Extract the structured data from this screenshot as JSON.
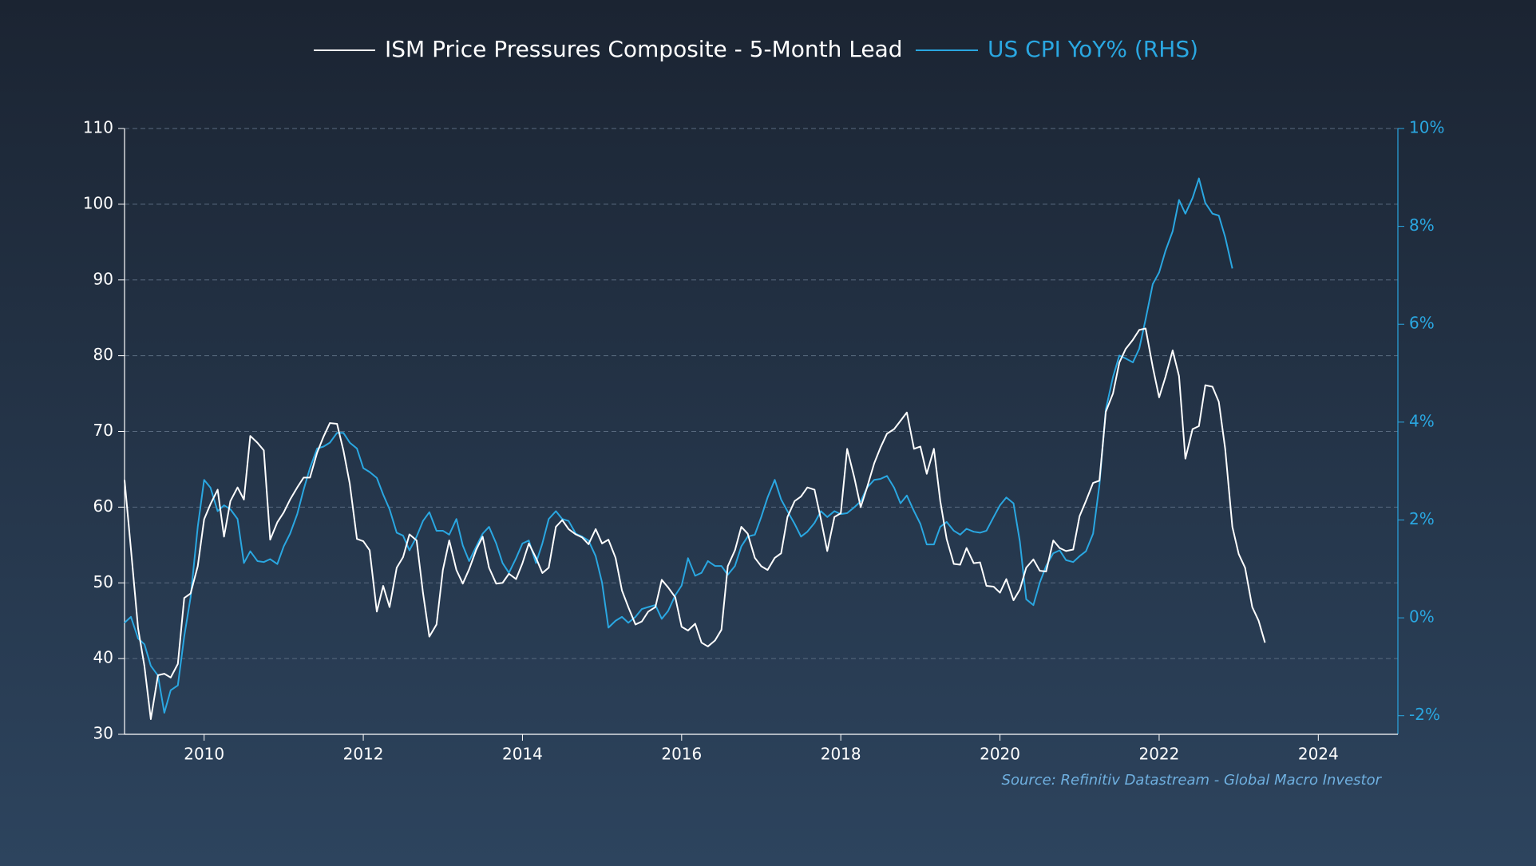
{
  "chart_data": {
    "type": "line",
    "source": "Source: Refinitiv Datastream - Global Macro Investor",
    "x": [
      2009,
      2009.08,
      2009.17,
      2009.25,
      2009.33,
      2009.42,
      2009.5,
      2009.58,
      2009.67,
      2009.75,
      2009.83,
      2009.92,
      2010,
      2010.08,
      2010.17,
      2010.25,
      2010.33,
      2010.42,
      2010.5,
      2010.58,
      2010.67,
      2010.75,
      2010.83,
      2010.92,
      2011,
      2011.08,
      2011.17,
      2011.25,
      2011.33,
      2011.42,
      2011.5,
      2011.58,
      2011.67,
      2011.75,
      2011.83,
      2011.92,
      2012,
      2012.08,
      2012.17,
      2012.25,
      2012.33,
      2012.42,
      2012.5,
      2012.58,
      2012.67,
      2012.75,
      2012.83,
      2012.92,
      2013,
      2013.08,
      2013.17,
      2013.25,
      2013.33,
      2013.42,
      2013.5,
      2013.58,
      2013.67,
      2013.75,
      2013.83,
      2013.92,
      2014,
      2014.08,
      2014.17,
      2014.25,
      2014.33,
      2014.42,
      2014.5,
      2014.58,
      2014.67,
      2014.75,
      2014.83,
      2014.92,
      2015,
      2015.08,
      2015.17,
      2015.25,
      2015.33,
      2015.42,
      2015.5,
      2015.58,
      2015.67,
      2015.75,
      2015.83,
      2015.92,
      2016,
      2016.08,
      2016.17,
      2016.25,
      2016.33,
      2016.42,
      2016.5,
      2016.58,
      2016.67,
      2016.75,
      2016.83,
      2016.92,
      2017,
      2017.08,
      2017.17,
      2017.25,
      2017.33,
      2017.42,
      2017.5,
      2017.58,
      2017.67,
      2017.75,
      2017.83,
      2017.92,
      2018,
      2018.08,
      2018.17,
      2018.25,
      2018.33,
      2018.42,
      2018.5,
      2018.58,
      2018.67,
      2018.75,
      2018.83,
      2018.92,
      2019,
      2019.08,
      2019.17,
      2019.25,
      2019.33,
      2019.42,
      2019.5,
      2019.58,
      2019.67,
      2019.75,
      2019.83,
      2019.92,
      2020,
      2020.08,
      2020.17,
      2020.25,
      2020.33,
      2020.42,
      2020.5,
      2020.58,
      2020.67,
      2020.75,
      2020.83,
      2020.92,
      2021,
      2021.08,
      2021.17,
      2021.25,
      2021.33,
      2021.42,
      2021.5,
      2021.58,
      2021.67,
      2021.75,
      2021.83,
      2021.92,
      2022,
      2022.08,
      2022.17,
      2022.25,
      2022.33,
      2022.42,
      2022.5,
      2022.58,
      2022.67,
      2022.75,
      2022.83,
      2022.92,
      2023,
      2023.08,
      2023.17,
      2023.25,
      2023.33
    ],
    "series": [
      {
        "name": "ISM Price Pressures Composite - 5-Month Lead",
        "color": "#ffffff",
        "axis": "y",
        "values": [
          63.6,
          54.5,
          44,
          39,
          32,
          37.8,
          38,
          37.5,
          39.3,
          48,
          48.6,
          52.2,
          58.4,
          60.4,
          62.3,
          56.1,
          60.8,
          62.6,
          61,
          69.4,
          68.5,
          67.5,
          55.7,
          58,
          59.3,
          61,
          62.6,
          63.9,
          63.9,
          67.2,
          69.3,
          71.1,
          71,
          67.5,
          63.1,
          55.8,
          55.5,
          54.3,
          46.2,
          49.6,
          46.8,
          52,
          53.4,
          56.4,
          55.6,
          48.7,
          42.9,
          44.5,
          51.7,
          55.6,
          51.7,
          49.9,
          51.8,
          54.4,
          56.1,
          52,
          49.9,
          50,
          51.2,
          50.5,
          52.6,
          55.2,
          53.3,
          51.3,
          52,
          57.4,
          58.3,
          57.1,
          56.4,
          56,
          55.1,
          57.1,
          55.2,
          55.7,
          53.3,
          49,
          46.8,
          44.5,
          44.9,
          46.2,
          46.8,
          50.4,
          49.4,
          48.1,
          44.2,
          43.7,
          44.6,
          42.1,
          41.6,
          42.4,
          43.8,
          52.2,
          54.3,
          57.4,
          56.5,
          53.3,
          52.2,
          51.7,
          53.3,
          53.9,
          58.7,
          60.8,
          61.4,
          62.6,
          62.3,
          58.4,
          54.2,
          58.7,
          59.2,
          67.7,
          63.9,
          60,
          62.6,
          65.8,
          67.9,
          69.7,
          70.3,
          71.4,
          72.5,
          67.7,
          68,
          64.4,
          67.7,
          60.8,
          55.8,
          52.5,
          52.4,
          54.6,
          52.6,
          52.7,
          49.6,
          49.5,
          48.7,
          50.5,
          47.7,
          49.1,
          52,
          53.1,
          51.6,
          51.5,
          55.6,
          54.6,
          54.2,
          54.4,
          58.8,
          60.8,
          63.2,
          63.5,
          72.6,
          75,
          79.1,
          80.9,
          82.1,
          83.4,
          83.6,
          78.5,
          74.5,
          77.2,
          80.7,
          77.3,
          66.4,
          70.3,
          70.7,
          76.1,
          75.9,
          73.9,
          67.7,
          57.4,
          53.8,
          52,
          46.8,
          45,
          42.1
        ]
      },
      {
        "name": "US CPI YoY% (RHS)",
        "color": "#2aa7e1",
        "axis": "y2",
        "values": [
          -0.1,
          0.02,
          -0.42,
          -0.54,
          -0.98,
          -1.18,
          -1.94,
          -1.48,
          -1.38,
          -0.38,
          0.42,
          1.86,
          2.82,
          2.66,
          2.18,
          2.3,
          2.22,
          2.02,
          1.12,
          1.36,
          1.16,
          1.14,
          1.2,
          1.1,
          1.46,
          1.72,
          2.12,
          2.62,
          3.06,
          3.46,
          3.5,
          3.58,
          3.78,
          3.78,
          3.58,
          3.46,
          3.06,
          2.98,
          2.86,
          2.52,
          2.22,
          1.74,
          1.68,
          1.38,
          1.66,
          1.98,
          2.16,
          1.78,
          1.78,
          1.7,
          2.02,
          1.48,
          1.16,
          1.46,
          1.72,
          1.86,
          1.52,
          1.12,
          0.92,
          1.22,
          1.52,
          1.58,
          1.12,
          1.52,
          2.02,
          2.18,
          2.02,
          1.98,
          1.72,
          1.66,
          1.58,
          1.26,
          0.72,
          -0.2,
          -0.06,
          0.02,
          -0.1,
          0.02,
          0.18,
          0.22,
          0.26,
          -0.02,
          0.14,
          0.46,
          0.66,
          1.22,
          0.86,
          0.92,
          1.16,
          1.06,
          1.06,
          0.88,
          1.06,
          1.46,
          1.66,
          1.7,
          2.06,
          2.46,
          2.82,
          2.42,
          2.18,
          1.92,
          1.66,
          1.76,
          1.94,
          2.18,
          2.06,
          2.18,
          2.12,
          2.14,
          2.26,
          2.38,
          2.66,
          2.82,
          2.84,
          2.9,
          2.66,
          2.34,
          2.5,
          2.18,
          1.92,
          1.5,
          1.5,
          1.86,
          1.96,
          1.78,
          1.7,
          1.82,
          1.76,
          1.74,
          1.78,
          2.06,
          2.3,
          2.46,
          2.34,
          1.56,
          0.38,
          0.26,
          0.72,
          1.06,
          1.32,
          1.38,
          1.18,
          1.14,
          1.26,
          1.36,
          1.72,
          2.72,
          4.26,
          4.92,
          5.36,
          5.3,
          5.22,
          5.5,
          6.1,
          6.82,
          7.06,
          7.5,
          7.9,
          8.54,
          8.26,
          8.58,
          8.98,
          8.48,
          8.26,
          8.22,
          7.78,
          7.14,
          null,
          null,
          null,
          null,
          null
        ]
      }
    ],
    "xlim": [
      2009,
      2025
    ],
    "xticks": [
      2010,
      2012,
      2014,
      2016,
      2018,
      2020,
      2022,
      2024
    ],
    "ylim": [
      30,
      110
    ],
    "yticks": [
      30,
      40,
      50,
      60,
      70,
      80,
      90,
      100,
      110
    ],
    "y2lim": [
      -2.38,
      10
    ],
    "y2ticks": [
      {
        "value": -2,
        "label": "-2%"
      },
      {
        "value": 0,
        "label": "0%"
      },
      {
        "value": 2,
        "label": "2%"
      },
      {
        "value": 4,
        "label": "4%"
      },
      {
        "value": 6,
        "label": "6%"
      },
      {
        "value": 8,
        "label": "8%"
      },
      {
        "value": 10,
        "label": "10%"
      }
    ],
    "grid": true
  }
}
